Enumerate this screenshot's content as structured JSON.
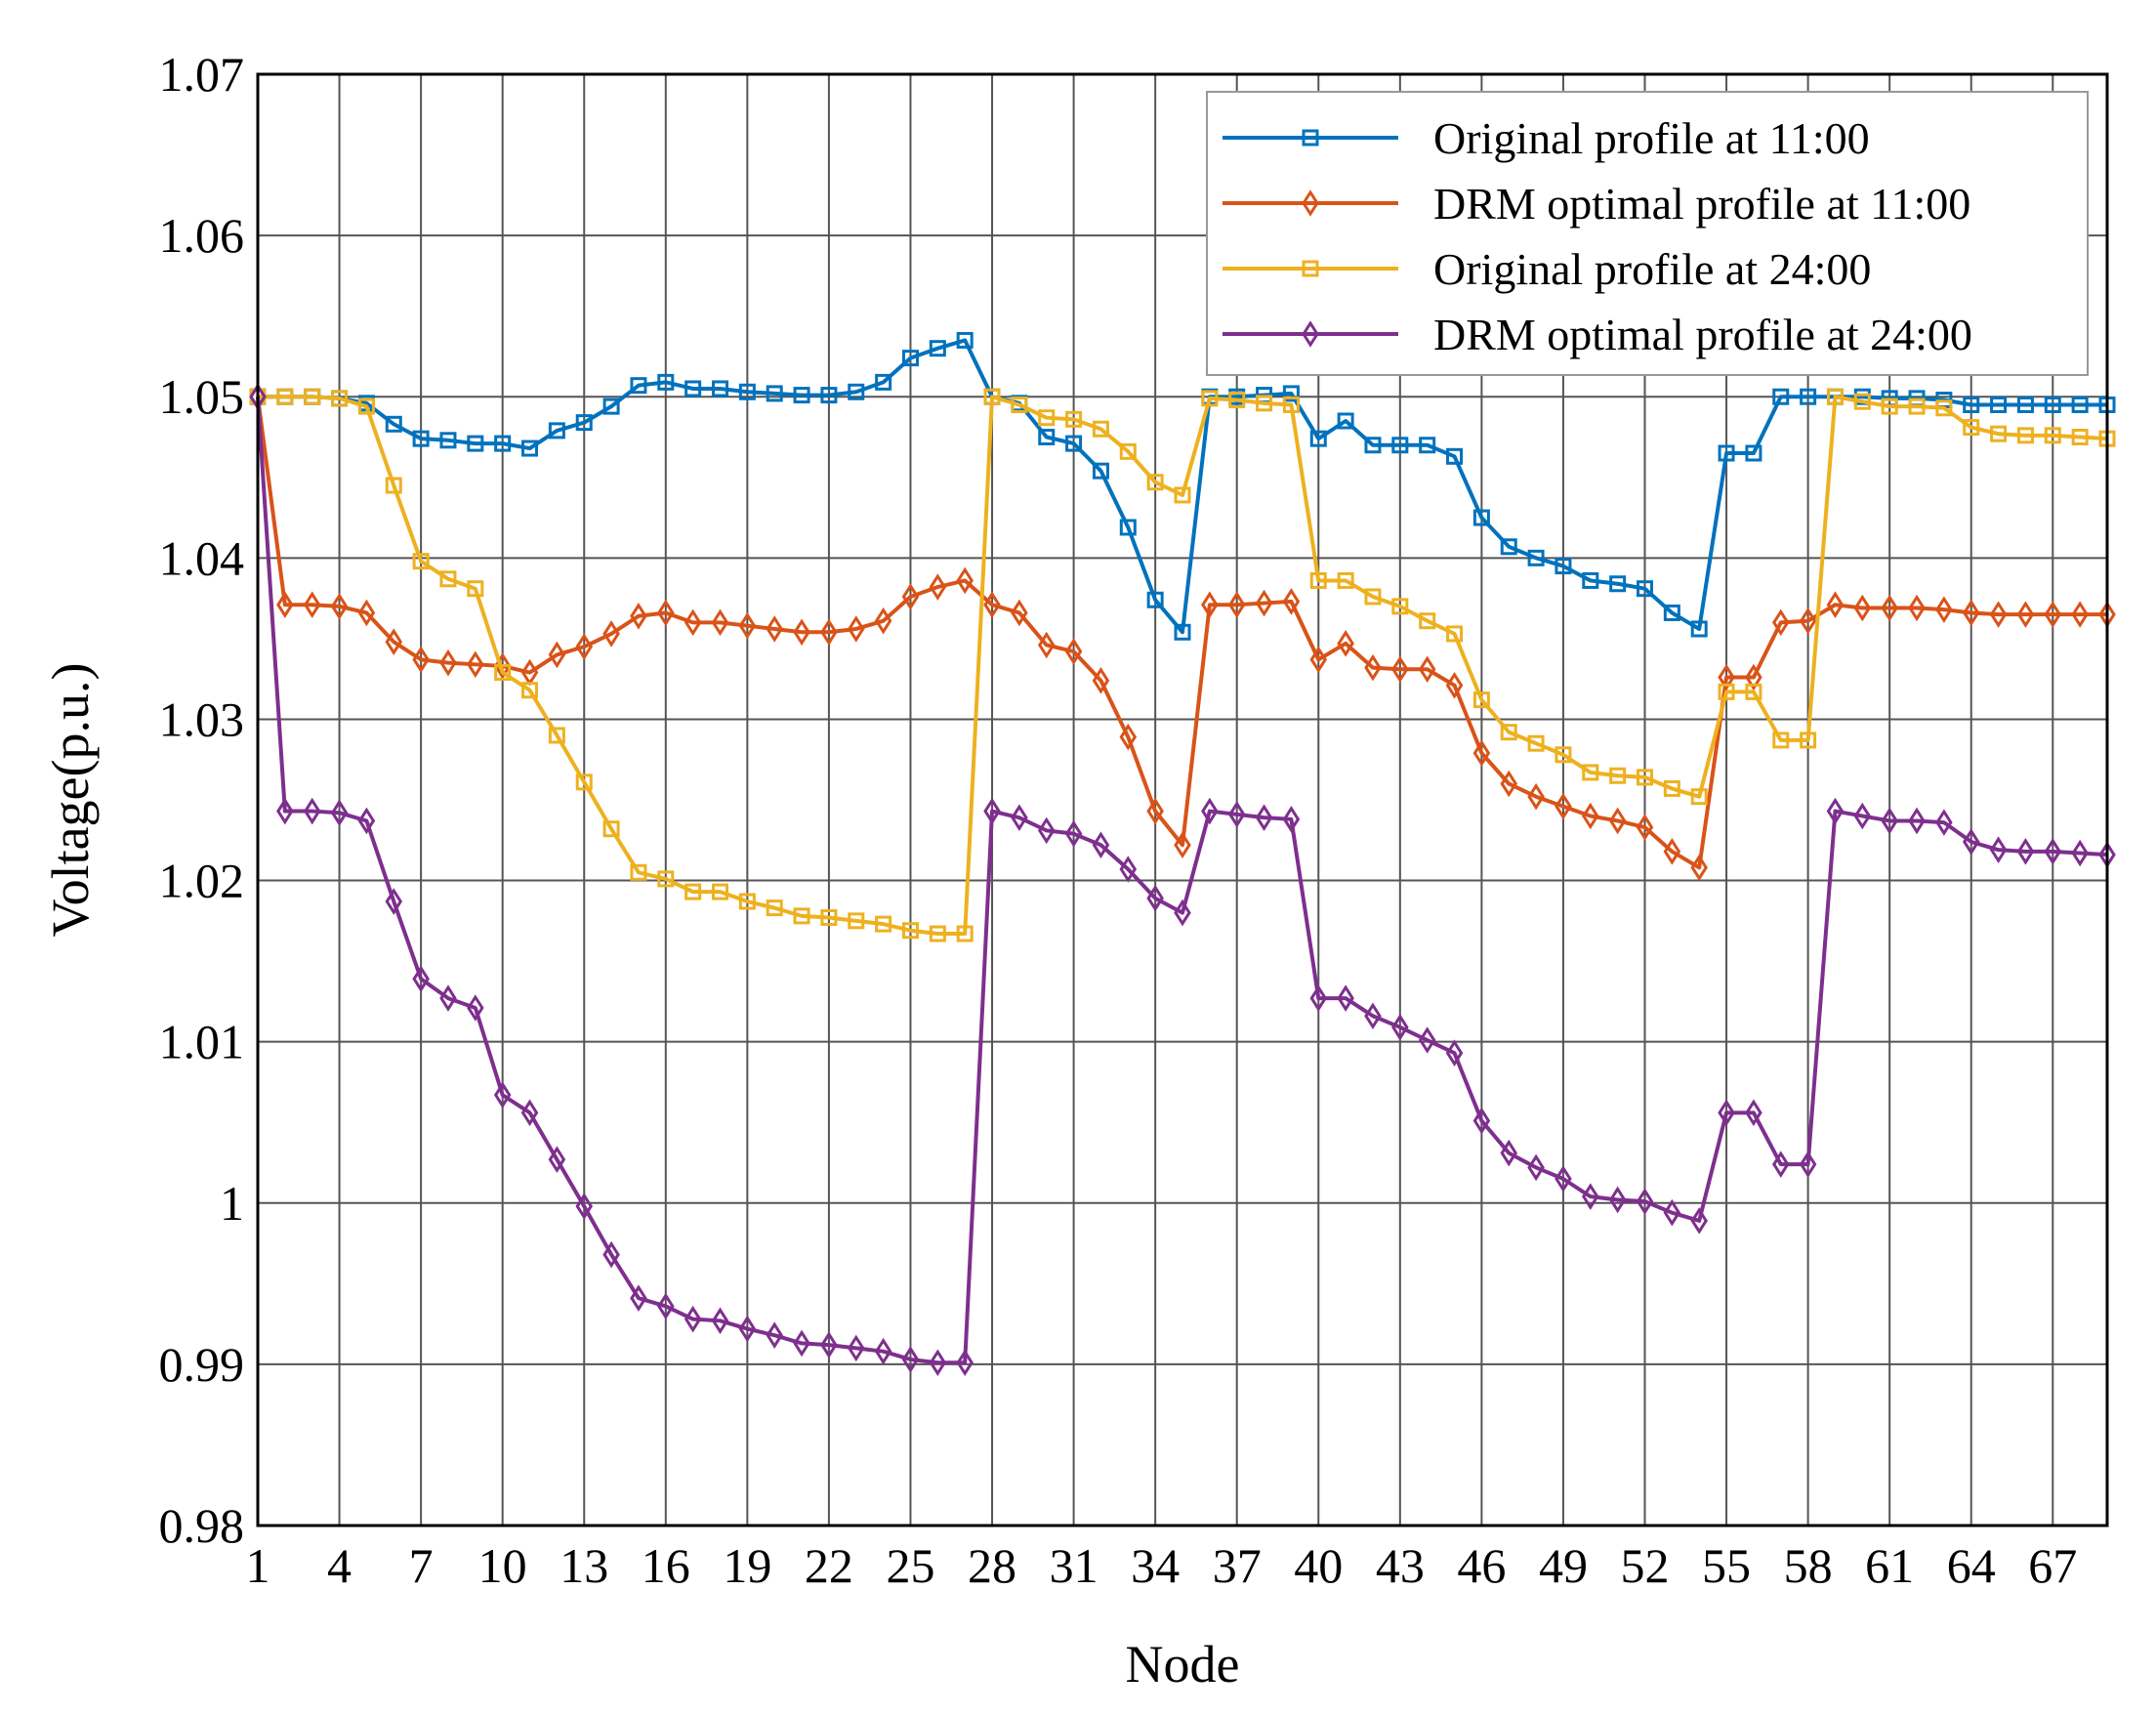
{
  "chart_data": {
    "type": "line",
    "xlabel": "Node",
    "ylabel": "Voltage(p.u.)",
    "xlim": [
      1,
      69
    ],
    "ylim": [
      0.98,
      1.07
    ],
    "grid": true,
    "legend_position": "top-right",
    "xticks": [
      1,
      4,
      7,
      10,
      13,
      16,
      19,
      22,
      25,
      28,
      31,
      34,
      37,
      40,
      43,
      46,
      49,
      52,
      55,
      58,
      61,
      64,
      67
    ],
    "yticks": [
      0.98,
      0.99,
      1,
      1.01,
      1.02,
      1.03,
      1.04,
      1.05,
      1.06,
      1.07
    ],
    "ytick_labels": [
      "0.98",
      "0.99",
      "1",
      "1.01",
      "1.02",
      "1.03",
      "1.04",
      "1.05",
      "1.06",
      "1.07"
    ],
    "x": [
      1,
      2,
      3,
      4,
      5,
      6,
      7,
      8,
      9,
      10,
      11,
      12,
      13,
      14,
      15,
      16,
      17,
      18,
      19,
      20,
      21,
      22,
      23,
      24,
      25,
      26,
      27,
      28,
      29,
      30,
      31,
      32,
      33,
      34,
      35,
      36,
      37,
      38,
      39,
      40,
      41,
      42,
      43,
      44,
      45,
      46,
      47,
      48,
      49,
      50,
      51,
      52,
      53,
      54,
      55,
      56,
      57,
      58,
      59,
      60,
      61,
      62,
      63,
      64,
      65,
      66,
      67,
      68,
      69
    ],
    "series": [
      {
        "name": "Original profile at 11:00",
        "color": "#0072BD",
        "marker": "square",
        "values": [
          1.05,
          1.05,
          1.05,
          1.0499,
          1.0496,
          1.0483,
          1.0474,
          1.0473,
          1.0471,
          1.0471,
          1.0468,
          1.0479,
          1.0484,
          1.0494,
          1.0507,
          1.0509,
          1.0505,
          1.0505,
          1.0503,
          1.0502,
          1.0501,
          1.0501,
          1.0503,
          1.0509,
          1.0524,
          1.053,
          1.0535,
          1.05,
          1.0496,
          1.0475,
          1.0471,
          1.0454,
          1.0419,
          1.0374,
          1.0354,
          1.05,
          1.05,
          1.0501,
          1.0502,
          1.0474,
          1.0485,
          1.047,
          1.047,
          1.047,
          1.0463,
          1.0425,
          1.0407,
          1.04,
          1.0395,
          1.0386,
          1.0384,
          1.0381,
          1.0366,
          1.0356,
          1.0465,
          1.0465,
          1.05,
          1.05,
          1.05,
          1.05,
          1.0499,
          1.0499,
          1.0498,
          1.0495,
          1.0495,
          1.0495,
          1.0495,
          1.0495,
          1.0495
        ]
      },
      {
        "name": "DRM optimal profile at 11:00",
        "color": "#D95319",
        "marker": "diamond",
        "values": [
          1.05,
          1.0371,
          1.0371,
          1.037,
          1.0366,
          1.0348,
          1.0337,
          1.0335,
          1.0334,
          1.0333,
          1.0329,
          1.034,
          1.0345,
          1.0353,
          1.0364,
          1.0366,
          1.036,
          1.036,
          1.0358,
          1.0356,
          1.0354,
          1.0354,
          1.0356,
          1.0361,
          1.0376,
          1.0382,
          1.0386,
          1.0371,
          1.0366,
          1.0346,
          1.0342,
          1.0324,
          1.0289,
          1.0243,
          1.0222,
          1.0371,
          1.0371,
          1.0372,
          1.0373,
          1.0337,
          1.0347,
          1.0332,
          1.0331,
          1.0331,
          1.0321,
          1.0279,
          1.026,
          1.0252,
          1.0246,
          1.024,
          1.0237,
          1.0233,
          1.0218,
          1.0208,
          1.0326,
          1.0326,
          1.036,
          1.0361,
          1.0371,
          1.0369,
          1.0369,
          1.0369,
          1.0368,
          1.0366,
          1.0365,
          1.0365,
          1.0365,
          1.0365,
          1.0365
        ]
      },
      {
        "name": "Original profile at 24:00",
        "color": "#EDB120",
        "marker": "square",
        "values": [
          1.05,
          1.05,
          1.05,
          1.0499,
          1.0494,
          1.0445,
          1.0398,
          1.0387,
          1.0381,
          1.0329,
          1.0318,
          1.029,
          1.0261,
          1.0232,
          1.0205,
          1.0201,
          1.0193,
          1.0193,
          1.0187,
          1.0183,
          1.0178,
          1.0177,
          1.0175,
          1.0173,
          1.0169,
          1.0167,
          1.0167,
          1.05,
          1.0495,
          1.0487,
          1.0486,
          1.048,
          1.0466,
          1.0447,
          1.0439,
          1.0499,
          1.0498,
          1.0496,
          1.0495,
          1.0386,
          1.0386,
          1.0376,
          1.037,
          1.0361,
          1.0353,
          1.0312,
          1.0292,
          1.0285,
          1.0278,
          1.0267,
          1.0265,
          1.0264,
          1.0257,
          1.0252,
          1.0317,
          1.0317,
          1.0287,
          1.0287,
          1.05,
          1.0497,
          1.0494,
          1.0494,
          1.0493,
          1.0481,
          1.0477,
          1.0476,
          1.0476,
          1.0475,
          1.0474
        ]
      },
      {
        "name": "DRM optimal profile at 24:00",
        "color": "#7E2F8E",
        "marker": "diamond",
        "values": [
          1.05,
          1.0243,
          1.0243,
          1.0242,
          1.0237,
          1.0187,
          1.0139,
          1.0127,
          1.0121,
          1.0067,
          1.0056,
          1.0027,
          0.9998,
          0.9968,
          0.9941,
          0.9936,
          0.9928,
          0.9927,
          0.9922,
          0.9918,
          0.9913,
          0.9912,
          0.991,
          0.9908,
          0.9903,
          0.9901,
          0.9901,
          1.0243,
          1.0239,
          1.0231,
          1.0229,
          1.0222,
          1.0207,
          1.0189,
          1.018,
          1.0243,
          1.0241,
          1.0239,
          1.0238,
          1.0127,
          1.0127,
          1.0116,
          1.0109,
          1.0101,
          1.0093,
          1.0051,
          1.0031,
          1.0022,
          1.0015,
          1.0004,
          1.0002,
          1.0001,
          0.9994,
          0.9989,
          1.0056,
          1.0056,
          1.0024,
          1.0024,
          1.0243,
          1.024,
          1.0237,
          1.0237,
          1.0236,
          1.0224,
          1.0219,
          1.0218,
          1.0218,
          1.0217,
          1.0216
        ]
      }
    ]
  }
}
